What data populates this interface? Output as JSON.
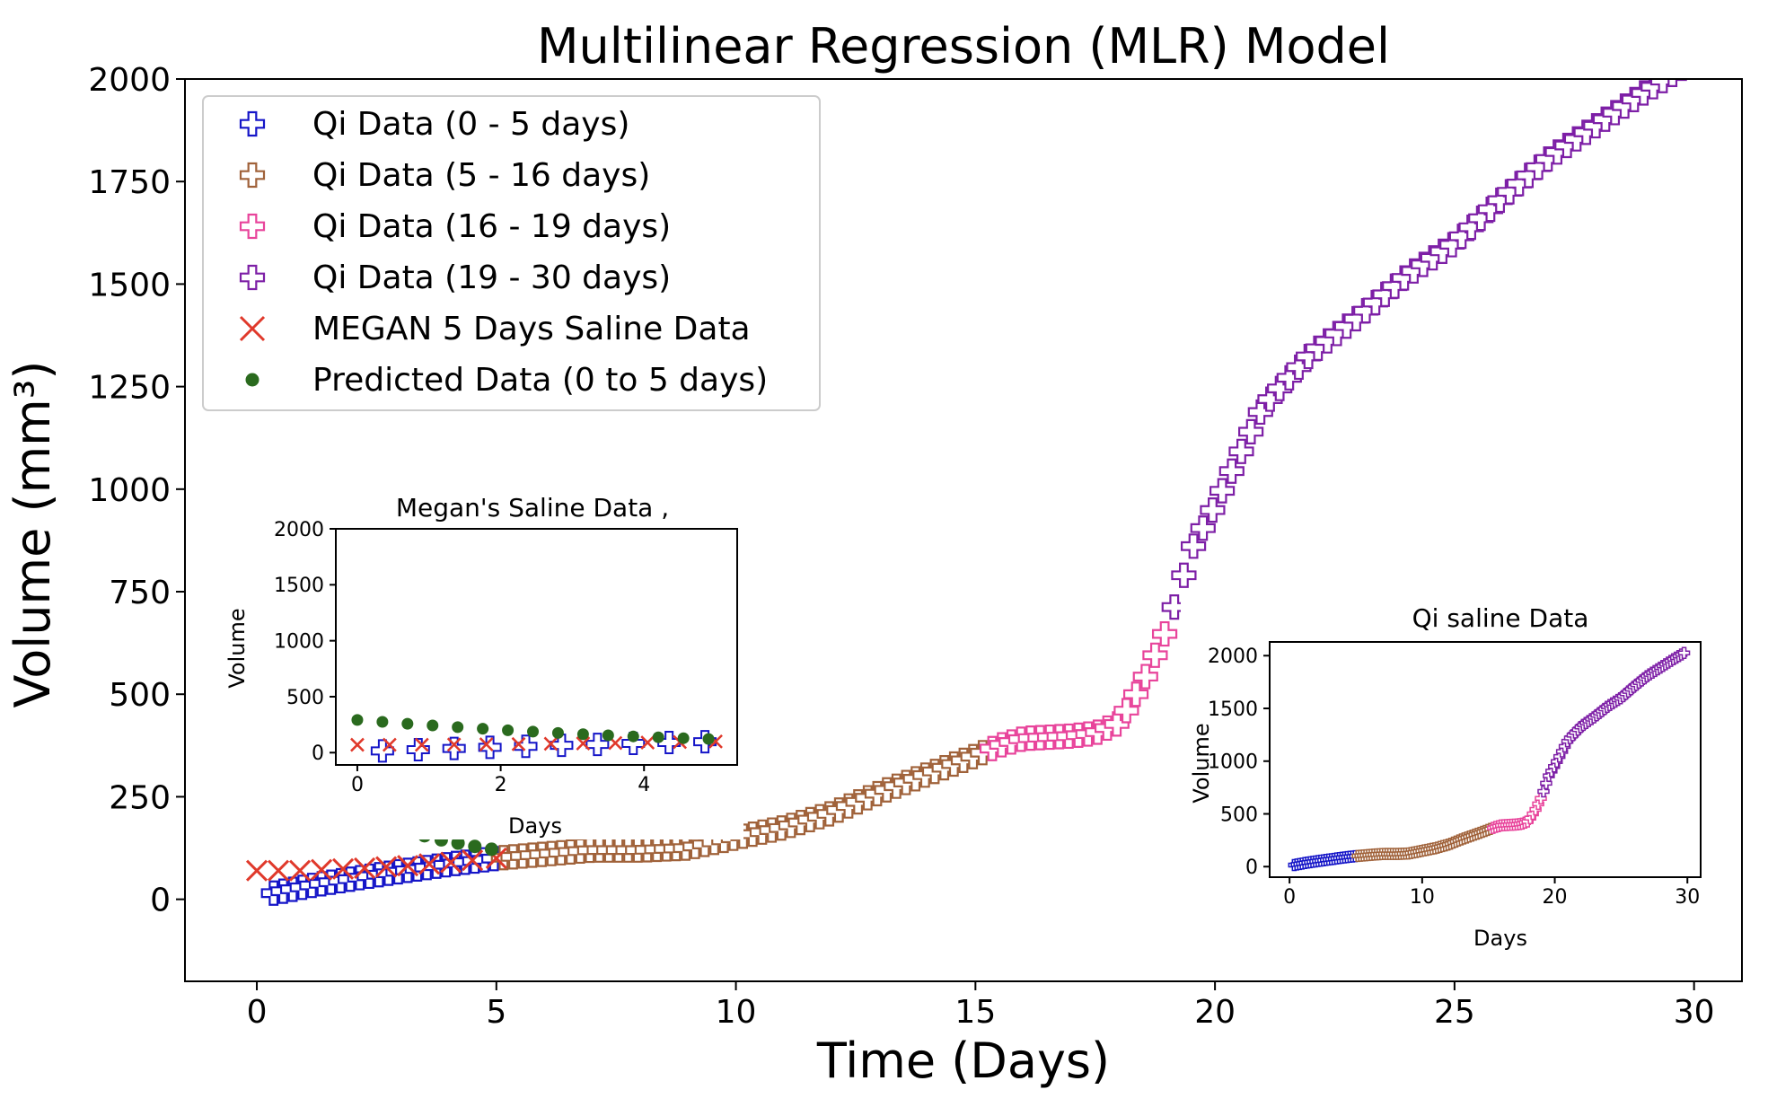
{
  "chart_data": [
    {
      "type": "scatter",
      "role": "main",
      "title": "Multilinear Regression (MLR) Model",
      "xlabel": "Time (Days)",
      "ylabel": "Volume (mm³)",
      "xlim": [
        -1.5,
        31
      ],
      "ylim": [
        -200,
        2000
      ],
      "xticks": [
        0,
        5,
        10,
        15,
        20,
        25,
        30
      ],
      "yticks": [
        0,
        250,
        500,
        750,
        1000,
        1250,
        1500,
        1750,
        2000
      ],
      "legend_position": "top-left",
      "legend": [
        {
          "label": "Qi Data (0 - 5 days)",
          "marker": "plus",
          "color": "#1515c8"
        },
        {
          "label": "Qi Data (5 - 16 days)",
          "marker": "plus",
          "color": "#a0623a"
        },
        {
          "label": "Qi Data (16 - 19 days)",
          "marker": "plus",
          "color": "#e8449b"
        },
        {
          "label": "Qi Data (19 - 30 days)",
          "marker": "plus",
          "color": "#7d1fa6"
        },
        {
          "label": "MEGAN 5 Days Saline Data",
          "marker": "x",
          "color": "#e0392b"
        },
        {
          "label": "Predicted Data (0 to 5 days)",
          "marker": "dot",
          "color": "#2a6a1e"
        }
      ]
    },
    {
      "type": "scatter",
      "role": "inset-left",
      "title": "Megan's Saline  Data ,",
      "xlabel": "Days",
      "ylabel": "Volume",
      "xlim": [
        -0.3,
        5.3
      ],
      "ylim": [
        -110,
        2000
      ],
      "xticks": [
        0,
        2,
        4
      ],
      "yticks": [
        0,
        500,
        1000,
        1500,
        2000
      ]
    },
    {
      "type": "scatter",
      "role": "inset-right",
      "title": "Qi saline Data",
      "xlabel": "Days",
      "ylabel": "Volume",
      "xlim": [
        -1.5,
        31
      ],
      "ylim": [
        -100,
        2130
      ],
      "xticks": [
        0,
        10,
        20,
        30
      ],
      "yticks": [
        0,
        500,
        1000,
        1500,
        2000
      ]
    }
  ],
  "series": {
    "qi_anchors": [
      [
        0.35,
        15
      ],
      [
        1.2,
        35
      ],
      [
        2.0,
        50
      ],
      [
        3.0,
        68
      ],
      [
        4.0,
        85
      ],
      [
        5.0,
        100
      ],
      [
        6.0,
        110
      ],
      [
        7.0,
        120
      ],
      [
        8.0,
        120
      ],
      [
        9.0,
        125
      ],
      [
        10.0,
        150
      ],
      [
        11.0,
        175
      ],
      [
        12.0,
        210
      ],
      [
        13.0,
        260
      ],
      [
        14.0,
        305
      ],
      [
        15.0,
        350
      ],
      [
        15.5,
        375
      ],
      [
        16.0,
        392
      ],
      [
        17.0,
        398
      ],
      [
        17.5,
        405
      ],
      [
        18.0,
        430
      ],
      [
        18.5,
        530
      ],
      [
        19.0,
        660
      ],
      [
        19.2,
        730
      ],
      [
        19.5,
        850
      ],
      [
        20.0,
        960
      ],
      [
        20.5,
        1080
      ],
      [
        21.0,
        1200
      ],
      [
        22.0,
        1330
      ],
      [
        23.0,
        1420
      ],
      [
        24.0,
        1520
      ],
      [
        25.0,
        1600
      ],
      [
        26.0,
        1710
      ],
      [
        27.0,
        1810
      ],
      [
        28.0,
        1890
      ],
      [
        29.0,
        1970
      ],
      [
        29.8,
        2030
      ]
    ],
    "megan_x": [
      0,
      0.45,
      0.9,
      1.35,
      1.8,
      2.25,
      2.7,
      3.15,
      3.6,
      4.05,
      4.5,
      5.0
    ],
    "megan_y": [
      70,
      70,
      70,
      72,
      74,
      76,
      79,
      82,
      86,
      90,
      95,
      100
    ],
    "predicted_x": [
      0,
      0.35,
      0.7,
      1.05,
      1.4,
      1.75,
      2.1,
      2.45,
      2.8,
      3.15,
      3.5,
      3.85,
      4.2,
      4.55,
      4.9
    ],
    "predicted_y": [
      292,
      275,
      258,
      243,
      228,
      214,
      200,
      188,
      176,
      165,
      155,
      145,
      137,
      129,
      122
    ],
    "qi_segment_bounds": [
      5,
      15.3,
      19.1
    ]
  }
}
